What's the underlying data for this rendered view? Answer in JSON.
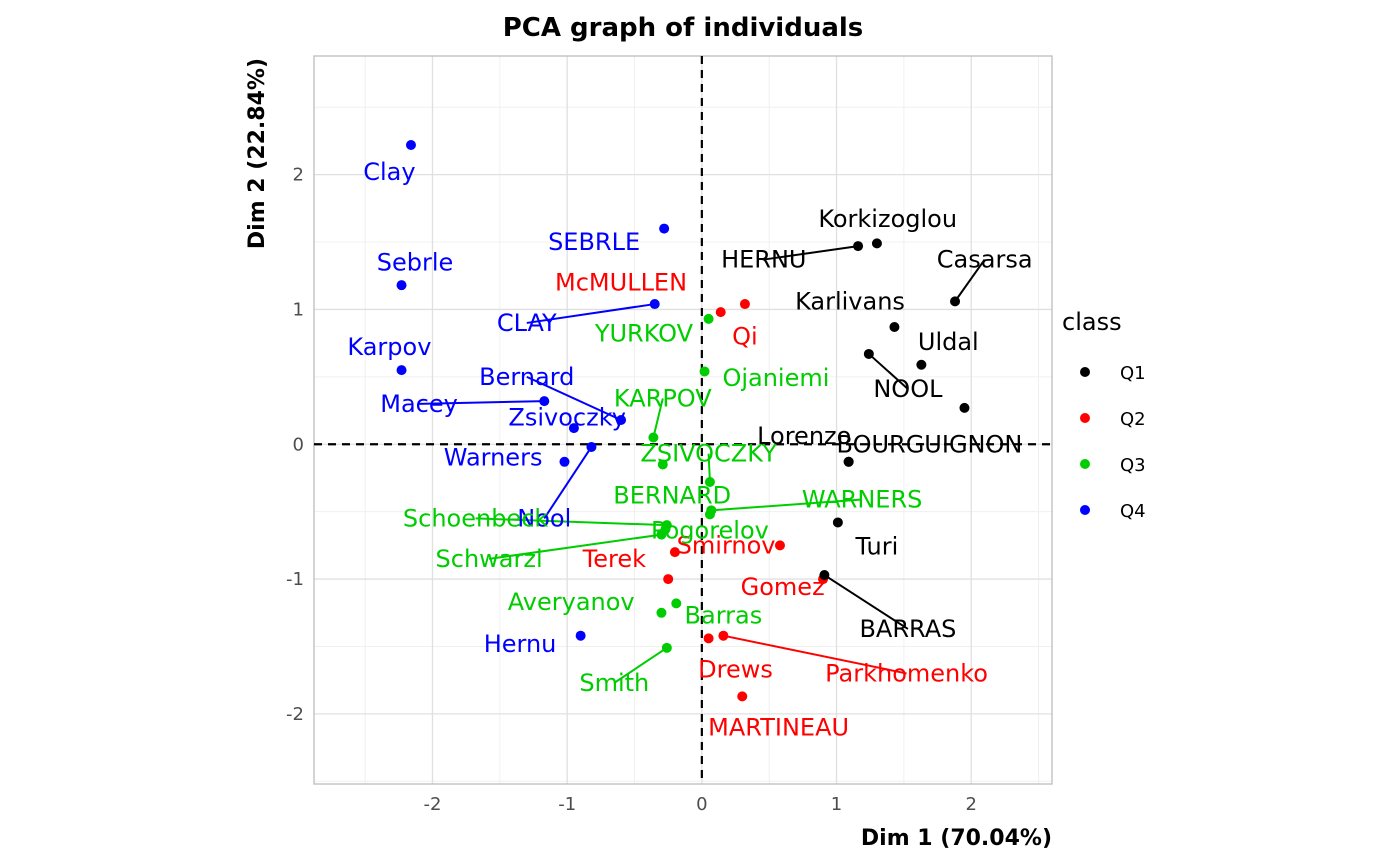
{
  "chart_data": {
    "type": "scatter",
    "title": "PCA graph of individuals",
    "xlabel": "Dim 1 (70.04%)",
    "ylabel": "Dim 2 (22.84%)",
    "xlim": [
      -2.88,
      2.6
    ],
    "ylim": [
      -2.52,
      2.88
    ],
    "xticks": [
      -2,
      -1,
      0,
      1,
      2
    ],
    "yticks": [
      -2,
      -1,
      0,
      1,
      2
    ],
    "xtick_labels": [
      "-2",
      "-1",
      "0",
      "1",
      "2"
    ],
    "ytick_labels": [
      "-2",
      "-1",
      "0",
      "1",
      "2"
    ],
    "grid": true,
    "reference_lines": {
      "x": 0,
      "y": 0,
      "style": "dashed"
    },
    "legend": {
      "title": "class",
      "position": "right",
      "entries": [
        {
          "name": "Q1",
          "color": "#000000"
        },
        {
          "name": "Q2",
          "color": "#ff0000"
        },
        {
          "name": "Q3",
          "color": "#00cd00"
        },
        {
          "name": "Q4",
          "color": "#0000ff"
        }
      ]
    },
    "points": [
      {
        "name": "Clay",
        "class": "Q4",
        "x": -2.16,
        "y": 2.22,
        "lx": -2.32,
        "ly": 2.02,
        "line": false
      },
      {
        "name": "Sebrle",
        "class": "Q4",
        "x": -2.23,
        "y": 1.18,
        "lx": -2.13,
        "ly": 1.35,
        "line": false
      },
      {
        "name": "Karpov",
        "class": "Q4",
        "x": -2.23,
        "y": 0.55,
        "lx": -2.32,
        "ly": 0.72,
        "line": false
      },
      {
        "name": "SEBRLE",
        "class": "Q4",
        "x": -0.28,
        "y": 1.6,
        "lx": -0.8,
        "ly": 1.5,
        "line": false
      },
      {
        "name": "CLAY",
        "class": "Q4",
        "x": -0.35,
        "y": 1.04,
        "lx": -1.3,
        "ly": 0.9,
        "line": true
      },
      {
        "name": "Bernard",
        "class": "Q4",
        "x": -0.6,
        "y": 0.18,
        "lx": -1.3,
        "ly": 0.5,
        "line": true
      },
      {
        "name": "Macey",
        "class": "Q4",
        "x": -1.17,
        "y": 0.32,
        "lx": -2.1,
        "ly": 0.3,
        "line": true
      },
      {
        "name": "Zsivoczky",
        "class": "Q4",
        "x": -0.95,
        "y": 0.12,
        "lx": -1.0,
        "ly": 0.2,
        "line": false
      },
      {
        "name": "Warners",
        "class": "Q4",
        "x": -1.02,
        "y": -0.13,
        "lx": -1.55,
        "ly": -0.1,
        "line": false
      },
      {
        "name": "Nool",
        "class": "Q4",
        "x": -0.82,
        "y": -0.02,
        "lx": -1.17,
        "ly": -0.55,
        "line": true
      },
      {
        "name": "Hernu",
        "class": "Q4",
        "x": -0.9,
        "y": -1.42,
        "lx": -1.35,
        "ly": -1.48,
        "line": false
      },
      {
        "name": "McMULLEN",
        "class": "Q2",
        "x": 0.14,
        "y": 0.98,
        "lx": -0.6,
        "ly": 1.2,
        "line": false
      },
      {
        "name": "Qi",
        "class": "Q2",
        "x": 0.32,
        "y": 1.04,
        "lx": 0.32,
        "ly": 0.8,
        "line": false
      },
      {
        "name": "Terek",
        "class": "Q2",
        "x": -0.2,
        "y": -0.8,
        "lx": -0.65,
        "ly": -0.85,
        "line": false
      },
      {
        "name": "Smirnov",
        "class": "Q2",
        "x": 0.58,
        "y": -0.75,
        "lx": 0.18,
        "ly": -0.75,
        "line": false
      },
      {
        "name": "",
        "class": "Q2",
        "x": -0.25,
        "y": -1.0,
        "lx": -0.25,
        "ly": -1.0,
        "line": false
      },
      {
        "name": "Gomez",
        "class": "Q2",
        "x": 0.9,
        "y": -1.0,
        "lx": 0.6,
        "ly": -1.06,
        "line": false
      },
      {
        "name": "Drews",
        "class": "Q2",
        "x": 0.05,
        "y": -1.44,
        "lx": 0.25,
        "ly": -1.67,
        "line": false
      },
      {
        "name": "Parkhomenko",
        "class": "Q2",
        "x": 0.16,
        "y": -1.42,
        "lx": 1.52,
        "ly": -1.7,
        "line": true
      },
      {
        "name": "MARTINEAU",
        "class": "Q2",
        "x": 0.3,
        "y": -1.87,
        "lx": 0.57,
        "ly": -2.1,
        "line": false
      },
      {
        "name": "YURKOV",
        "class": "Q3",
        "x": 0.05,
        "y": 0.93,
        "lx": -0.43,
        "ly": 0.82,
        "line": false
      },
      {
        "name": "Ojaniemi",
        "class": "Q3",
        "x": 0.02,
        "y": 0.54,
        "lx": 0.55,
        "ly": 0.49,
        "line": false
      },
      {
        "name": "KARPOV",
        "class": "Q3",
        "x": -0.36,
        "y": 0.05,
        "lx": -0.29,
        "ly": 0.34,
        "line": true
      },
      {
        "name": "ZSIVOCZKY",
        "class": "Q3",
        "x": 0.06,
        "y": -0.28,
        "lx": 0.05,
        "ly": -0.07,
        "line": true
      },
      {
        "name": "BERNARD",
        "class": "Q3",
        "x": -0.29,
        "y": -0.15,
        "lx": -0.22,
        "ly": -0.38,
        "line": false
      },
      {
        "name": "Pogorelov",
        "class": "Q3",
        "x": 0.06,
        "y": -0.52,
        "lx": 0.06,
        "ly": -0.64,
        "line": false
      },
      {
        "name": "WARNERS",
        "class": "Q3",
        "x": 0.07,
        "y": -0.49,
        "lx": 1.19,
        "ly": -0.41,
        "line": true
      },
      {
        "name": "Schoenbeck",
        "class": "Q3",
        "x": -0.26,
        "y": -0.6,
        "lx": -1.68,
        "ly": -0.55,
        "line": true
      },
      {
        "name": "",
        "class": "Q3",
        "x": -0.27,
        "y": -0.63,
        "lx": -0.27,
        "ly": -0.63,
        "line": false
      },
      {
        "name": "Schwarzl",
        "class": "Q3",
        "x": -0.3,
        "y": -0.67,
        "lx": -1.58,
        "ly": -0.85,
        "line": true
      },
      {
        "name": "Averyanov",
        "class": "Q3",
        "x": -0.3,
        "y": -1.25,
        "lx": -0.97,
        "ly": -1.17,
        "line": false
      },
      {
        "name": "Barras",
        "class": "Q3",
        "x": -0.19,
        "y": -1.18,
        "lx": 0.16,
        "ly": -1.27,
        "line": false
      },
      {
        "name": "Smith",
        "class": "Q3",
        "x": -0.26,
        "y": -1.51,
        "lx": -0.65,
        "ly": -1.77,
        "line": true
      },
      {
        "name": "Korkizoglou",
        "class": "Q1",
        "x": 1.3,
        "y": 1.49,
        "lx": 1.38,
        "ly": 1.67,
        "line": false
      },
      {
        "name": "HERNU",
        "class": "Q1",
        "x": 1.16,
        "y": 1.47,
        "lx": 0.46,
        "ly": 1.37,
        "line": true
      },
      {
        "name": "Casarsa",
        "class": "Q1",
        "x": 1.88,
        "y": 1.06,
        "lx": 2.1,
        "ly": 1.37,
        "line": true
      },
      {
        "name": "Karlivans",
        "class": "Q1",
        "x": 1.43,
        "y": 0.87,
        "lx": 1.1,
        "ly": 1.06,
        "line": false
      },
      {
        "name": "Uldal",
        "class": "Q1",
        "x": 1.63,
        "y": 0.59,
        "lx": 1.83,
        "ly": 0.76,
        "line": false
      },
      {
        "name": "NOOL",
        "class": "Q1",
        "x": 1.24,
        "y": 0.67,
        "lx": 1.53,
        "ly": 0.41,
        "line": true
      },
      {
        "name": "",
        "class": "Q1",
        "x": 1.95,
        "y": 0.27,
        "lx": 1.95,
        "ly": 0.27,
        "line": false
      },
      {
        "name": "Lorenzo",
        "class": "Q1",
        "x": 1.09,
        "y": -0.13,
        "lx": 0.76,
        "ly": 0.06,
        "line": false
      },
      {
        "name": "BOURGUIGNON",
        "class": "Q1",
        "x": 1.09,
        "y": -0.13,
        "lx": 1.69,
        "ly": 0.0,
        "line": false
      },
      {
        "name": "Turi",
        "class": "Q1",
        "x": 1.01,
        "y": -0.58,
        "lx": 1.3,
        "ly": -0.76,
        "line": false
      },
      {
        "name": "BARRAS",
        "class": "Q1",
        "x": 0.91,
        "y": -0.97,
        "lx": 1.53,
        "ly": -1.37,
        "line": true
      }
    ]
  }
}
